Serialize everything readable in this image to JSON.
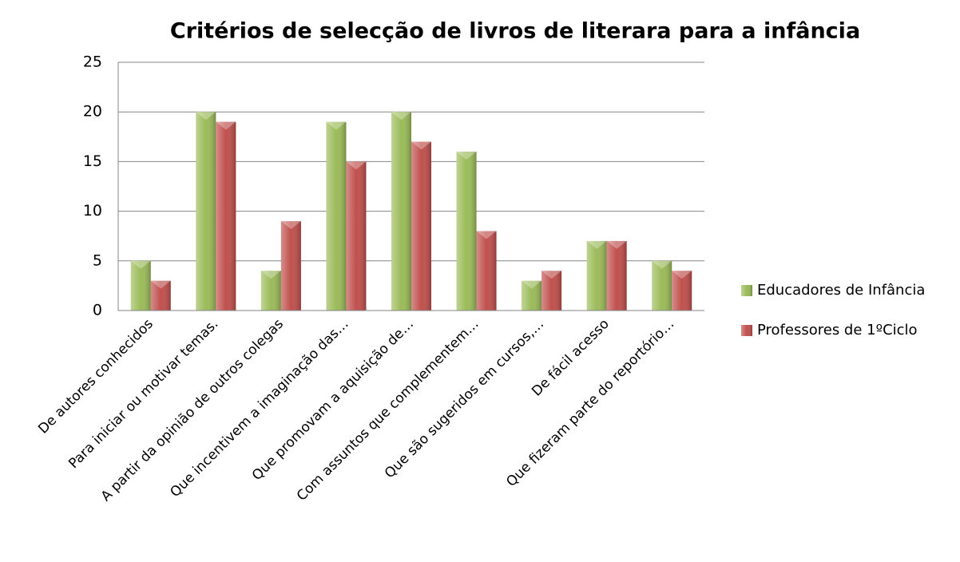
{
  "chart_data": {
    "type": "bar",
    "title": "Critérios de selecção de livros de literara para a infância",
    "categories": [
      "De autores conhecidos",
      "Para iniciar ou motivar temas.",
      "A partir da opinião de outros colegas",
      "Que incentivem a imaginação das…",
      "Que promovam a aquisição de…",
      "Com assuntos que complementem…",
      "Que são sugeridos em cursos,…",
      "De fácil acesso",
      "Que fizeram parte do reportório…"
    ],
    "series": [
      {
        "name": "Educadores de Infância",
        "color": "#9bbb59",
        "values": [
          5,
          20,
          4,
          19,
          20,
          16,
          3,
          7,
          5
        ]
      },
      {
        "name": "Professores de 1ºCiclo",
        "color": "#c0504d",
        "values": [
          3,
          19,
          9,
          15,
          17,
          8,
          4,
          7,
          4
        ]
      }
    ],
    "ylim": [
      0,
      25
    ],
    "yticks": [
      0,
      5,
      10,
      15,
      20,
      25
    ],
    "grid": true,
    "legend": "right"
  }
}
